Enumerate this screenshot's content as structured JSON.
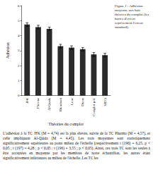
{
  "chart_data": {
    "type": "bar",
    "x_label": "Théories du complot",
    "y_label": "Adhésion",
    "categories": [
      "JFK",
      "Pharma",
      "Al-Qaida",
      "Illuminati",
      "Lune",
      "Diana",
      "Complot pol.",
      "SIDA"
    ],
    "values": [
      4.74,
      4.57,
      4.45,
      3.3,
      3.2,
      3.1,
      2.75,
      2.7
    ],
    "errors": [
      0.12,
      0.12,
      0.11,
      0.12,
      0.12,
      0.11,
      0.12,
      0.12
    ],
    "color": "#2b2b2b",
    "ylim": [
      0,
      6
    ],
    "yticks": [
      0,
      1,
      2,
      3,
      4,
      5,
      6
    ],
    "grid": false
  },
  "caption": "Figure 1 : Adhésion moyenne aux huit théories du complot (les barres d'erreur représentent l'erreur standard).",
  "body": "L'adhésion à la TC JFK (M = 4,74) est la plus élevée, suivie de la TC Pharma (M = 4,57), et celle impliquant Al-Qaida (M = 4,45). Les trois moyennes sont statistiquement significativement supérieures au point milieu de l'échelle (respectivement t (196) = 6,25, p < 0,05 ; t (197) = 4,28 ; p < 0,05 ; t (196) = 3,55 ; p < 0,05). Ainsi, ces trois TC sont les seules à être acceptées en moyenne par les membres de notre échantillon, les autres étant significativement inférieures au milieu de l'échelle. Les TC les"
}
